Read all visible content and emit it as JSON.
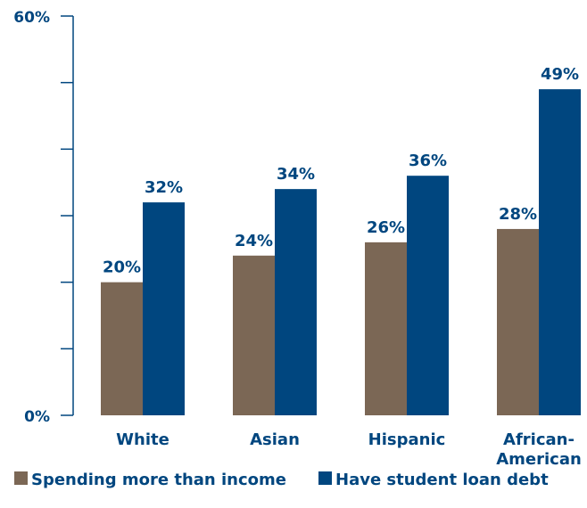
{
  "chart_data": {
    "type": "bar",
    "categories": [
      "White",
      "Asian",
      "Hispanic",
      "African-American"
    ],
    "category_lines": [
      [
        "White"
      ],
      [
        "Asian"
      ],
      [
        "Hispanic"
      ],
      [
        "African-",
        "American"
      ]
    ],
    "series": [
      {
        "name": "Spending more than income",
        "values": [
          20,
          24,
          26,
          28
        ],
        "labels": [
          "20%",
          "24%",
          "26%",
          "28%"
        ],
        "color": "#7b6755"
      },
      {
        "name": "Have student loan debt",
        "values": [
          32,
          34,
          36,
          49
        ],
        "labels": [
          "32%",
          "34%",
          "36%",
          "49%"
        ],
        "color": "#00467f"
      }
    ],
    "ylim": [
      0,
      60
    ],
    "y_tick_labels": [
      "0%",
      "60%"
    ],
    "grid": false,
    "legend_position": "bottom-left",
    "text_color": "#00467f",
    "axis_color": "#00467f"
  }
}
